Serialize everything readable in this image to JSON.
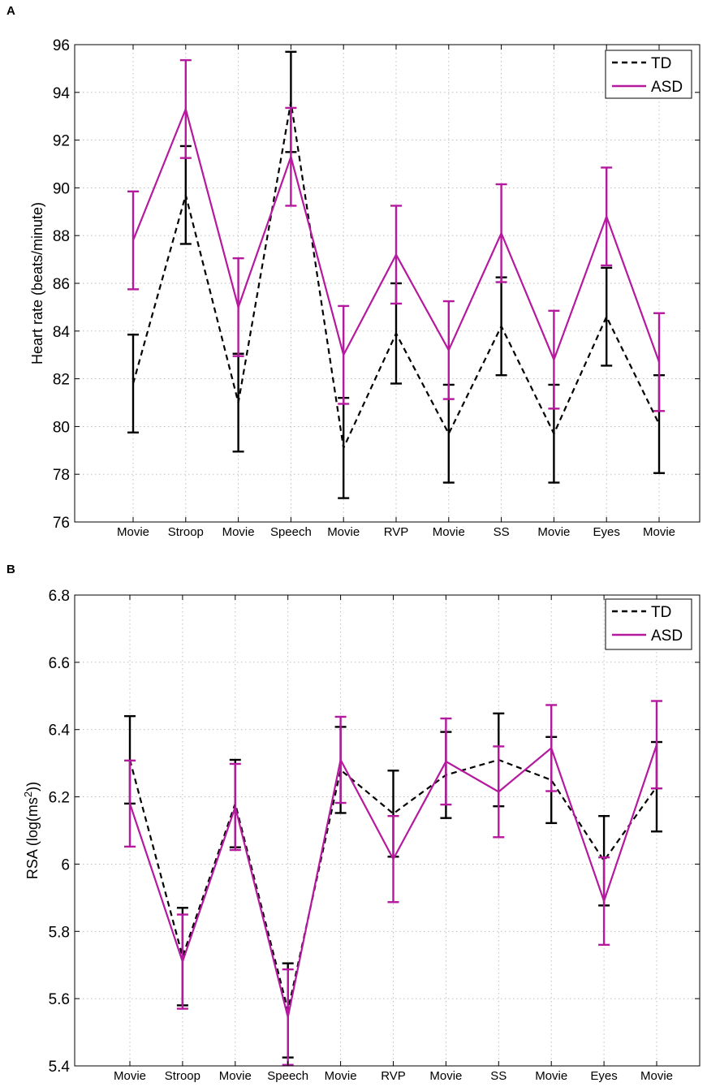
{
  "chart_data": [
    {
      "panel": "A",
      "type": "line",
      "title": "",
      "xlabel": "",
      "ylabel": "Heart rate (beats/minute)",
      "ylim": [
        76,
        96
      ],
      "yticks": [
        76,
        78,
        80,
        82,
        84,
        86,
        88,
        90,
        92,
        94,
        96
      ],
      "categories": [
        "Movie",
        "Stroop",
        "Movie",
        "Speech",
        "Movie",
        "RVP",
        "Movie",
        "SS",
        "Movie",
        "Eyes",
        "Movie"
      ],
      "grid": true,
      "legend": "top-right",
      "series": [
        {
          "name": "TD",
          "style": "dashed",
          "color": "#000000",
          "values": [
            81.8,
            89.7,
            81.0,
            93.6,
            79.1,
            83.9,
            79.7,
            84.2,
            79.7,
            84.6,
            80.1
          ],
          "errors": [
            2.05,
            2.05,
            2.05,
            2.1,
            2.1,
            2.1,
            2.05,
            2.05,
            2.05,
            2.05,
            2.05
          ]
        },
        {
          "name": "ASD",
          "style": "solid",
          "color": "#b5199e",
          "values": [
            87.8,
            93.3,
            85.0,
            91.3,
            83.0,
            87.2,
            83.2,
            88.1,
            82.8,
            88.8,
            82.7
          ],
          "errors": [
            2.05,
            2.05,
            2.05,
            2.05,
            2.05,
            2.05,
            2.05,
            2.05,
            2.05,
            2.05,
            2.05
          ]
        }
      ]
    },
    {
      "panel": "B",
      "type": "line",
      "title": "",
      "xlabel": "",
      "ylabel": "RSA (log(ms²))",
      "ylim": [
        5.4,
        6.8
      ],
      "yticks": [
        5.4,
        5.6,
        5.8,
        6.0,
        6.2,
        6.4,
        6.6,
        6.8
      ],
      "ytick_labels": [
        "5.4",
        "5.6",
        "5.8",
        "6",
        "6.2",
        "6.4",
        "6.6",
        "6.8"
      ],
      "categories": [
        "Movie",
        "Stroop",
        "Movie",
        "Speech",
        "Movie",
        "RVP",
        "Movie",
        "SS",
        "Movie",
        "Eyes",
        "Movie"
      ],
      "grid": true,
      "legend": "top-right",
      "series": [
        {
          "name": "TD",
          "style": "dashed",
          "color": "#000000",
          "values": [
            6.31,
            5.725,
            6.18,
            5.565,
            6.28,
            6.15,
            6.265,
            6.31,
            6.25,
            6.01,
            6.23
          ],
          "errors": [
            0.13,
            0.145,
            0.13,
            0.14,
            0.128,
            0.128,
            0.128,
            0.138,
            0.128,
            0.133,
            0.133
          ]
        },
        {
          "name": "ASD",
          "style": "solid",
          "color": "#b5199e",
          "values": [
            6.18,
            5.71,
            6.17,
            5.545,
            6.31,
            6.015,
            6.305,
            6.215,
            6.345,
            5.89,
            6.355
          ],
          "errors": [
            0.128,
            0.14,
            0.128,
            0.142,
            0.128,
            0.128,
            0.128,
            0.135,
            0.128,
            0.13,
            0.13
          ]
        }
      ]
    }
  ]
}
